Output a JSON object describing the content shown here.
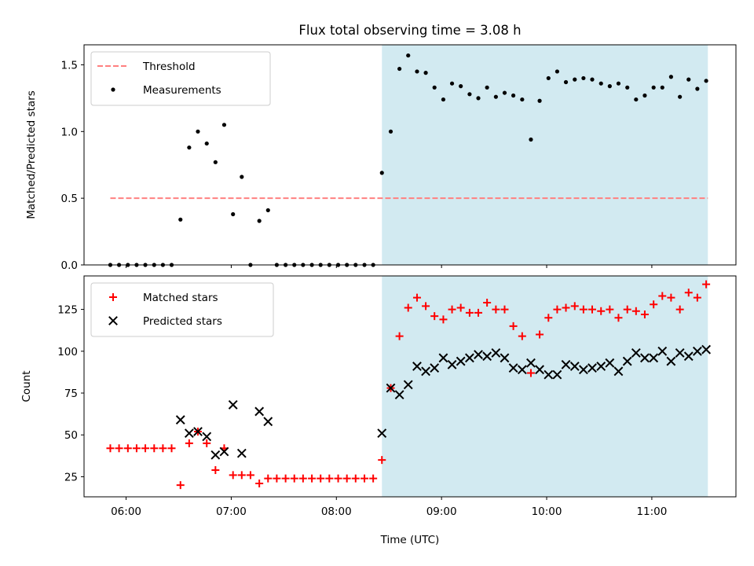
{
  "title": "Flux total observing time = 3.08 h",
  "colors": {
    "threshold": "#ff8080",
    "measurements": "#000000",
    "matched": "#ff0000",
    "predicted": "#000000",
    "shade": "#add8e6"
  },
  "chart_data": [
    {
      "type": "scatter",
      "ylabel": "Matched/Predicted stars",
      "xlabel": "",
      "xlim": [
        5.6,
        11.8
      ],
      "ylim": [
        0,
        1.65
      ],
      "yticks": [
        0,
        0.5,
        1.0,
        1.5
      ],
      "ytick_labels": [
        "0.0",
        "0.5",
        "1.0",
        "1.5"
      ],
      "shaded_region": [
        8.433,
        11.533
      ],
      "legend_position": "top-left",
      "series": [
        {
          "name": "Threshold",
          "kind": "dashed-line",
          "x": [
            5.85,
            11.533
          ],
          "y": [
            0.5,
            0.5
          ]
        },
        {
          "name": "Measurements",
          "kind": "points",
          "x": [
            5.85,
            5.933,
            6.017,
            6.1,
            6.183,
            6.267,
            6.35,
            6.433,
            6.517,
            6.6,
            6.683,
            6.767,
            6.85,
            6.933,
            7.017,
            7.1,
            7.183,
            7.267,
            7.35,
            7.433,
            7.517,
            7.6,
            7.683,
            7.767,
            7.85,
            7.933,
            8.017,
            8.1,
            8.183,
            8.267,
            8.35,
            8.433,
            8.517,
            8.6,
            8.683,
            8.767,
            8.85,
            8.933,
            9.017,
            9.1,
            9.183,
            9.267,
            9.35,
            9.433,
            9.517,
            9.6,
            9.683,
            9.767,
            9.85,
            9.933,
            10.017,
            10.1,
            10.183,
            10.267,
            10.35,
            10.433,
            10.517,
            10.6,
            10.683,
            10.767,
            10.85,
            10.933,
            11.017,
            11.1,
            11.183,
            11.267,
            11.35,
            11.433,
            11.517
          ],
          "y": [
            0,
            0,
            0,
            0,
            0,
            0,
            0,
            0,
            0.34,
            0.88,
            1.0,
            0.91,
            0.77,
            1.05,
            0.38,
            0.66,
            0,
            0.33,
            0.41,
            0,
            0,
            0,
            0,
            0,
            0,
            0,
            0,
            0,
            0,
            0,
            0,
            0.69,
            1.0,
            1.47,
            1.57,
            1.45,
            1.44,
            1.33,
            1.24,
            1.36,
            1.34,
            1.28,
            1.25,
            1.33,
            1.26,
            1.29,
            1.27,
            1.24,
            0.94,
            1.23,
            1.4,
            1.45,
            1.37,
            1.39,
            1.4,
            1.39,
            1.36,
            1.34,
            1.36,
            1.33,
            1.24,
            1.27,
            1.33,
            1.33,
            1.41,
            1.26,
            1.39,
            1.32,
            1.38
          ]
        }
      ]
    },
    {
      "type": "scatter",
      "ylabel": "Count",
      "xlabel": "Time (UTC)",
      "xlim": [
        5.6,
        11.8
      ],
      "ylim": [
        13,
        145
      ],
      "yticks": [
        25,
        50,
        75,
        100,
        125
      ],
      "ytick_labels": [
        "25",
        "50",
        "75",
        "100",
        "125"
      ],
      "xticks": [
        6,
        7,
        8,
        9,
        10,
        11
      ],
      "xtick_labels": [
        "06:00",
        "07:00",
        "08:00",
        "09:00",
        "10:00",
        "11:00"
      ],
      "shaded_region": [
        8.433,
        11.533
      ],
      "legend_position": "top-left",
      "series": [
        {
          "name": "Matched stars",
          "kind": "plus",
          "x": [
            5.85,
            5.933,
            6.017,
            6.1,
            6.183,
            6.267,
            6.35,
            6.433,
            6.517,
            6.6,
            6.683,
            6.767,
            6.85,
            6.933,
            7.017,
            7.1,
            7.183,
            7.267,
            7.35,
            7.433,
            7.517,
            7.6,
            7.683,
            7.767,
            7.85,
            7.933,
            8.017,
            8.1,
            8.183,
            8.267,
            8.35,
            8.433,
            8.517,
            8.6,
            8.683,
            8.767,
            8.85,
            8.933,
            9.017,
            9.1,
            9.183,
            9.267,
            9.35,
            9.433,
            9.517,
            9.6,
            9.683,
            9.767,
            9.85,
            9.933,
            10.017,
            10.1,
            10.183,
            10.267,
            10.35,
            10.433,
            10.517,
            10.6,
            10.683,
            10.767,
            10.85,
            10.933,
            11.017,
            11.1,
            11.183,
            11.267,
            11.35,
            11.433,
            11.517
          ],
          "y": [
            42,
            42,
            42,
            42,
            42,
            42,
            42,
            42,
            20,
            45,
            52,
            45,
            29,
            42,
            26,
            26,
            26,
            21,
            24,
            24,
            24,
            24,
            24,
            24,
            24,
            24,
            24,
            24,
            24,
            24,
            24,
            35,
            78,
            109,
            126,
            132,
            127,
            121,
            119,
            125,
            126,
            123,
            123,
            129,
            125,
            125,
            115,
            109,
            87,
            110,
            120,
            125,
            126,
            127,
            125,
            125,
            124,
            125,
            120,
            125,
            124,
            122,
            128,
            133,
            132,
            125,
            135,
            132,
            140
          ]
        },
        {
          "name": "Predicted stars",
          "kind": "cross",
          "x": [
            6.517,
            6.6,
            6.683,
            6.767,
            6.85,
            6.933,
            7.017,
            7.1,
            7.267,
            7.35,
            8.433,
            8.517,
            8.6,
            8.683,
            8.767,
            8.85,
            8.933,
            9.017,
            9.1,
            9.183,
            9.267,
            9.35,
            9.433,
            9.517,
            9.6,
            9.683,
            9.767,
            9.85,
            9.933,
            10.017,
            10.1,
            10.183,
            10.267,
            10.35,
            10.433,
            10.517,
            10.6,
            10.683,
            10.767,
            10.85,
            10.933,
            11.017,
            11.1,
            11.183,
            11.267,
            11.35,
            11.433,
            11.517
          ],
          "y": [
            59,
            51,
            52,
            49,
            38,
            40,
            68,
            39,
            64,
            58,
            51,
            78,
            74,
            80,
            91,
            88,
            90,
            96,
            92,
            94,
            96,
            98,
            97,
            99,
            96,
            90,
            89,
            93,
            89,
            86,
            86,
            92,
            91,
            89,
            90,
            91,
            93,
            88,
            94,
            99,
            96,
            96,
            100,
            94,
            99,
            97,
            100,
            101
          ]
        }
      ]
    }
  ]
}
